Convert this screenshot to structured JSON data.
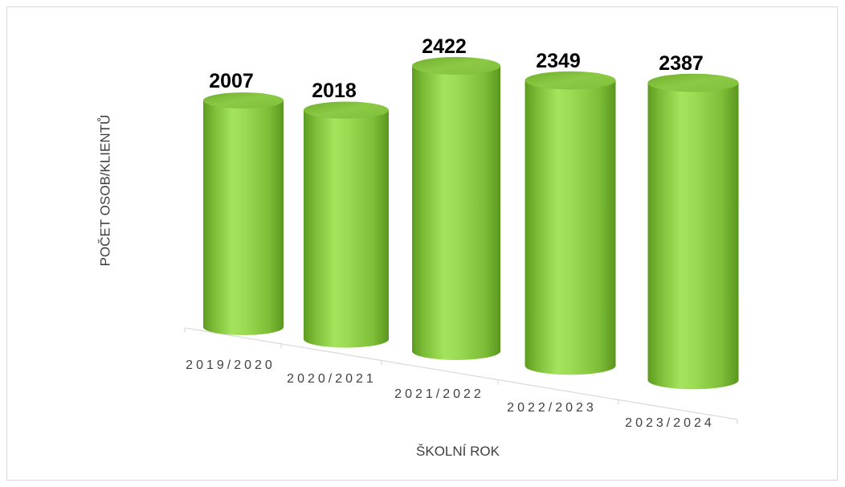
{
  "chart_data": {
    "type": "bar",
    "bar_shape": "cylinder",
    "categories": [
      "2019/2020",
      "2020/2021",
      "2021/2022",
      "2022/2023",
      "2023/2024"
    ],
    "values": [
      2007,
      2018,
      2422,
      2349,
      2387
    ],
    "xlabel": "ŠKOLNÍ ROK",
    "ylabel": "POČET OSOB/KLIENTŮ",
    "grid": false,
    "legend": "none",
    "data_labels": true,
    "color": "#92d050"
  }
}
